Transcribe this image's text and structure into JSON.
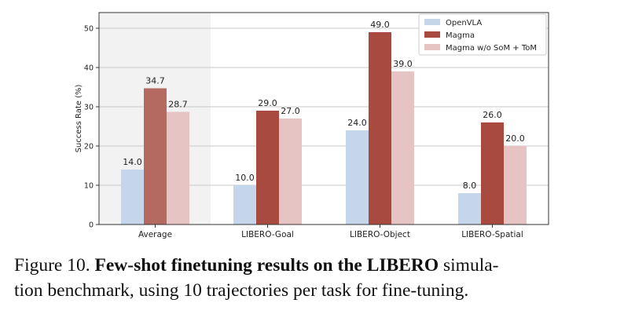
{
  "chart_data": {
    "type": "bar",
    "categories": [
      "Average",
      "LIBERO-Goal",
      "LIBERO-Object",
      "LIBERO-Spatial"
    ],
    "series": [
      {
        "name": "OpenVLA",
        "values": [
          14.0,
          10.0,
          24.0,
          8.0
        ],
        "color": "#c5d5ea"
      },
      {
        "name": "Magma",
        "values": [
          34.7,
          29.0,
          49.0,
          26.0
        ],
        "color": "#a84a40"
      },
      {
        "name": "Magma w/o SoM + ToM",
        "values": [
          28.7,
          27.0,
          39.0,
          20.0
        ],
        "color": "#e6c4c4"
      }
    ],
    "average_colors": {
      "Magma": "#b46a60"
    },
    "data_labels": [
      [
        "14.0",
        "10.0",
        "24.0",
        "8.0"
      ],
      [
        "34.7",
        "29.0",
        "49.0",
        "26.0"
      ],
      [
        "28.7",
        "27.0",
        "39.0",
        "20.0"
      ]
    ],
    "ylabel": "Success Rate (%)",
    "ylim": [
      0,
      54
    ],
    "yticks": [
      "0",
      "10",
      "20",
      "30",
      "40",
      "50"
    ],
    "highlight_category": "Average",
    "highlight_color": "#f2f2f2",
    "grid": true,
    "legend_position": "top-right"
  },
  "caption": {
    "label": "Figure 10.",
    "bold": "Few-shot finetuning results on the LIBERO",
    "rest_line1": "simula-",
    "line2": "tion benchmark, using 10 trajectories per task for fine-tuning."
  }
}
